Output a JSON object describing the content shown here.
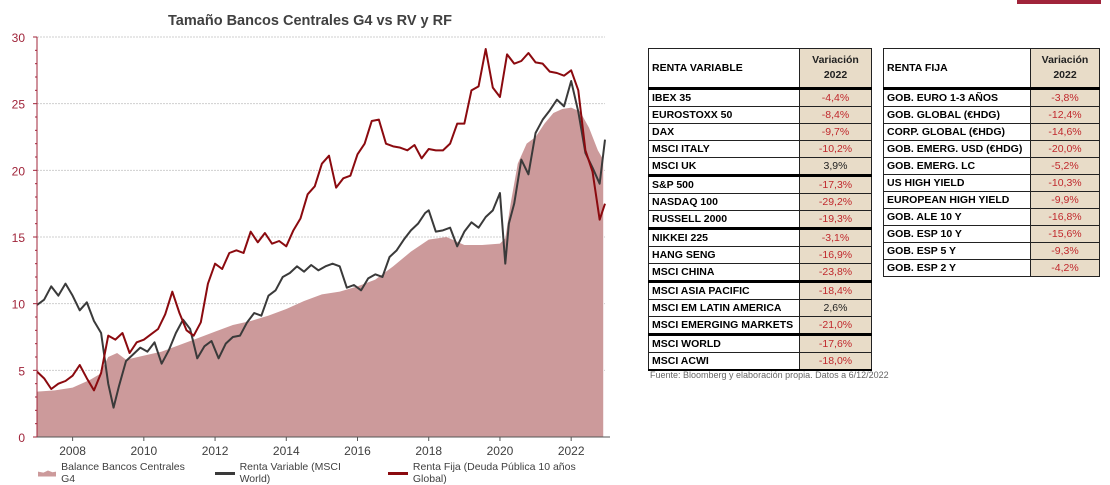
{
  "chart_data": {
    "type": "line",
    "title": "Tamaño Bancos Centrales G4 vs RV y RF",
    "xlabel": "",
    "ylabel": "",
    "xlim": [
      2007.0,
      2022.95
    ],
    "ylim": [
      0,
      30
    ],
    "yticks": [
      "0",
      "5",
      "10",
      "15",
      "20",
      "25",
      "30"
    ],
    "xticks": [
      "2008",
      "2010",
      "2012",
      "2014",
      "2016",
      "2018",
      "2020",
      "2022"
    ],
    "grid": true,
    "legend_position": "bottom",
    "colors": {
      "area": "#cc9a9b",
      "rv": "#3a3a3a",
      "rf": "#8b0a0f",
      "axis": "#a0243a"
    },
    "series": [
      {
        "name": "Balance Bancos Centrales G4",
        "kind": "area",
        "x": [
          2007.0,
          2007.5,
          2008.0,
          2008.5,
          2008.75,
          2009.0,
          2009.25,
          2009.5,
          2010.0,
          2010.5,
          2011.0,
          2011.5,
          2012.0,
          2012.5,
          2013.0,
          2013.5,
          2014.0,
          2014.5,
          2015.0,
          2015.5,
          2016.0,
          2016.5,
          2017.0,
          2017.5,
          2018.0,
          2018.5,
          2019.0,
          2019.5,
          2020.0,
          2020.15,
          2020.3,
          2020.5,
          2020.75,
          2021.0,
          2021.25,
          2021.5,
          2021.75,
          2022.0,
          2022.25,
          2022.5,
          2022.75,
          2022.9
        ],
        "values": [
          3.4,
          3.5,
          3.7,
          4.3,
          4.7,
          6.0,
          6.3,
          5.8,
          6.1,
          6.4,
          6.9,
          7.4,
          7.9,
          8.4,
          8.7,
          9.1,
          9.6,
          10.2,
          10.7,
          10.9,
          11.3,
          11.8,
          12.8,
          13.9,
          14.8,
          15.0,
          14.4,
          14.4,
          14.5,
          14.9,
          17.5,
          20.5,
          22.0,
          22.5,
          23.5,
          24.3,
          24.6,
          24.7,
          24.4,
          23.2,
          21.5,
          20.8
        ]
      },
      {
        "name": "Renta Variable (MSCI World)",
        "kind": "line",
        "x": [
          2007.0,
          2007.2,
          2007.4,
          2007.6,
          2007.8,
          2008.0,
          2008.2,
          2008.4,
          2008.6,
          2008.8,
          2009.0,
          2009.15,
          2009.3,
          2009.5,
          2009.7,
          2009.9,
          2010.1,
          2010.3,
          2010.5,
          2010.7,
          2010.9,
          2011.1,
          2011.3,
          2011.5,
          2011.7,
          2011.9,
          2012.1,
          2012.3,
          2012.5,
          2012.7,
          2012.9,
          2013.1,
          2013.3,
          2013.5,
          2013.7,
          2013.9,
          2014.1,
          2014.3,
          2014.5,
          2014.7,
          2014.9,
          2015.1,
          2015.3,
          2015.5,
          2015.7,
          2015.9,
          2016.1,
          2016.3,
          2016.5,
          2016.7,
          2016.9,
          2017.1,
          2017.3,
          2017.5,
          2017.7,
          2017.9,
          2018.0,
          2018.2,
          2018.4,
          2018.6,
          2018.8,
          2019.0,
          2019.2,
          2019.4,
          2019.6,
          2019.8,
          2020.0,
          2020.15,
          2020.25,
          2020.4,
          2020.6,
          2020.8,
          2021.0,
          2021.2,
          2021.4,
          2021.6,
          2021.8,
          2022.0,
          2022.2,
          2022.4,
          2022.6,
          2022.8,
          2022.95
        ],
        "values": [
          9.9,
          10.3,
          11.3,
          10.6,
          11.5,
          10.6,
          9.5,
          10.1,
          8.7,
          7.8,
          4.0,
          2.2,
          3.8,
          5.7,
          6.2,
          6.7,
          6.4,
          7.1,
          5.5,
          6.5,
          7.8,
          8.8,
          8.1,
          5.9,
          6.8,
          7.2,
          5.9,
          7.0,
          7.5,
          7.6,
          8.6,
          9.3,
          9.1,
          10.6,
          11.0,
          12.0,
          12.3,
          12.8,
          12.4,
          12.9,
          12.5,
          12.8,
          13.0,
          12.8,
          11.2,
          11.4,
          11.0,
          11.9,
          12.2,
          12.0,
          13.5,
          14.0,
          14.8,
          15.5,
          16.0,
          16.8,
          17.0,
          15.4,
          15.5,
          15.7,
          14.3,
          15.4,
          16.1,
          15.7,
          16.5,
          17.0,
          18.3,
          13.0,
          16.0,
          17.5,
          20.8,
          19.7,
          22.8,
          23.8,
          24.5,
          25.3,
          24.8,
          26.7,
          24.4,
          21.3,
          20.2,
          19.0,
          22.3
        ]
      },
      {
        "name": "Renta Fija (Deuda Pública 10 años Global)",
        "kind": "line",
        "x": [
          2007.0,
          2007.2,
          2007.4,
          2007.6,
          2007.8,
          2008.0,
          2008.2,
          2008.4,
          2008.6,
          2008.8,
          2009.0,
          2009.2,
          2009.4,
          2009.6,
          2009.8,
          2010.0,
          2010.2,
          2010.4,
          2010.6,
          2010.8,
          2011.0,
          2011.2,
          2011.4,
          2011.6,
          2011.8,
          2012.0,
          2012.2,
          2012.4,
          2012.6,
          2012.8,
          2013.0,
          2013.2,
          2013.4,
          2013.6,
          2013.8,
          2014.0,
          2014.2,
          2014.4,
          2014.6,
          2014.8,
          2015.0,
          2015.2,
          2015.4,
          2015.6,
          2015.8,
          2016.0,
          2016.2,
          2016.4,
          2016.6,
          2016.8,
          2017.0,
          2017.2,
          2017.4,
          2017.6,
          2017.8,
          2018.0,
          2018.2,
          2018.4,
          2018.6,
          2018.8,
          2019.0,
          2019.2,
          2019.4,
          2019.6,
          2019.8,
          2020.0,
          2020.2,
          2020.4,
          2020.6,
          2020.8,
          2021.0,
          2021.2,
          2021.4,
          2021.6,
          2021.8,
          2022.0,
          2022.2,
          2022.4,
          2022.6,
          2022.8,
          2022.95
        ],
        "values": [
          4.9,
          4.4,
          3.6,
          4.0,
          4.2,
          4.6,
          5.4,
          4.4,
          3.5,
          4.8,
          7.6,
          7.3,
          7.8,
          6.3,
          7.1,
          7.3,
          7.7,
          8.1,
          9.2,
          10.9,
          9.3,
          8.0,
          7.6,
          8.6,
          11.5,
          13.0,
          12.6,
          13.8,
          14.0,
          13.8,
          15.4,
          14.6,
          15.3,
          14.5,
          14.7,
          14.3,
          15.5,
          16.4,
          18.2,
          18.8,
          20.5,
          21.1,
          18.7,
          19.4,
          19.6,
          21.2,
          22.0,
          23.7,
          23.8,
          22.0,
          21.8,
          21.7,
          21.5,
          21.9,
          20.9,
          21.6,
          21.5,
          21.5,
          22.0,
          23.5,
          23.5,
          26.0,
          26.3,
          29.1,
          26.2,
          25.5,
          28.7,
          28.0,
          28.2,
          28.8,
          28.1,
          28.0,
          27.4,
          27.3,
          27.1,
          27.5,
          26.0,
          21.5,
          19.9,
          16.3,
          17.5
        ]
      }
    ]
  },
  "legend": {
    "items": [
      {
        "label": "Balance Bancos Centrales G4",
        "color": "#cc9a9b"
      },
      {
        "label": "Renta Variable (MSCI World)",
        "color": "#3a3a3a"
      },
      {
        "label": "Renta Fija (Deuda Pública 10 años Global)",
        "color": "#8b0a0f"
      }
    ]
  },
  "tables": {
    "renta_variable": {
      "header": {
        "label": "RENTA VARIABLE",
        "value_line1": "Variación",
        "value_line2": "2022"
      },
      "rows": [
        {
          "label": "IBEX 35",
          "value": "-4,4%",
          "positive": false,
          "group_end": false
        },
        {
          "label": "EUROSTOXX 50",
          "value": "-8,4%",
          "positive": false,
          "group_end": false
        },
        {
          "label": "DAX",
          "value": "-9,7%",
          "positive": false,
          "group_end": false
        },
        {
          "label": "MSCI ITALY",
          "value": "-10,2%",
          "positive": false,
          "group_end": false
        },
        {
          "label": "MSCI UK",
          "value": "3,9%",
          "positive": true,
          "group_end": true
        },
        {
          "label": "S&P 500",
          "value": "-17,3%",
          "positive": false,
          "group_end": false
        },
        {
          "label": "NASDAQ 100",
          "value": "-29,2%",
          "positive": false,
          "group_end": false
        },
        {
          "label": "RUSSELL 2000",
          "value": "-19,3%",
          "positive": false,
          "group_end": true
        },
        {
          "label": "NIKKEI 225",
          "value": "-3,1%",
          "positive": false,
          "group_end": false
        },
        {
          "label": "HANG SENG",
          "value": "-16,9%",
          "positive": false,
          "group_end": false
        },
        {
          "label": "MSCI CHINA",
          "value": "-23,8%",
          "positive": false,
          "group_end": true
        },
        {
          "label": "MSCI ASIA PACIFIC",
          "value": "-18,4%",
          "positive": false,
          "group_end": false
        },
        {
          "label": "MSCI EM LATIN AMERICA",
          "value": "2,6%",
          "positive": true,
          "group_end": false
        },
        {
          "label": "MSCI EMERGING MARKETS",
          "value": "-21,0%",
          "positive": false,
          "group_end": true
        },
        {
          "label": "MSCI WORLD",
          "value": "-17,6%",
          "positive": false,
          "group_end": false
        },
        {
          "label": "MSCI ACWI",
          "value": "-18,0%",
          "positive": false,
          "group_end": true
        }
      ]
    },
    "renta_fija": {
      "header": {
        "label": "RENTA FIJA",
        "value_line1": "Variación",
        "value_line2": "2022"
      },
      "rows": [
        {
          "label": "GOB. EURO 1-3 AÑOS",
          "value": "-3,8%",
          "positive": false,
          "group_end": false
        },
        {
          "label": "GOB. GLOBAL (€HDG)",
          "value": "-12,4%",
          "positive": false,
          "group_end": false
        },
        {
          "label": "CORP. GLOBAL (€HDG)",
          "value": "-14,6%",
          "positive": false,
          "group_end": false
        },
        {
          "label": "GOB. EMERG. USD (€HDG)",
          "value": "-20,0%",
          "positive": false,
          "group_end": false
        },
        {
          "label": "GOB. EMERG. LC",
          "value": "-5,2%",
          "positive": false,
          "group_end": false
        },
        {
          "label": "US HIGH YIELD",
          "value": "-10,3%",
          "positive": false,
          "group_end": false
        },
        {
          "label": "EUROPEAN HIGH YIELD",
          "value": "-9,9%",
          "positive": false,
          "group_end": false
        },
        {
          "label": "GOB. ALE 10 Y",
          "value": "-16,8%",
          "positive": false,
          "group_end": false
        },
        {
          "label": "GOB. ESP 10 Y",
          "value": "-15,6%",
          "positive": false,
          "group_end": false
        },
        {
          "label": "GOB. ESP 5 Y",
          "value": "-9,3%",
          "positive": false,
          "group_end": false
        },
        {
          "label": "GOB. ESP 2 Y",
          "value": "-4,2%",
          "positive": false,
          "group_end": false
        }
      ]
    }
  },
  "source_note": "Fuente: Bloomberg y elaboración propia. Datos a 6/12/2022"
}
